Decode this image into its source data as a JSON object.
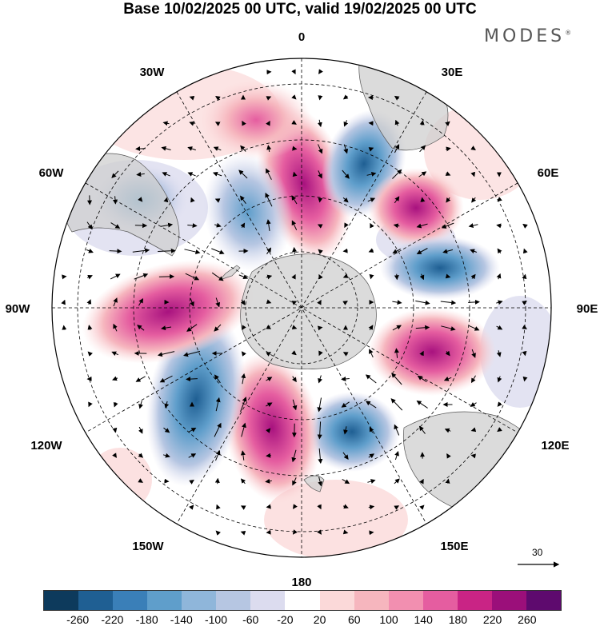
{
  "title": "Base 10/02/2025 00 UTC, valid 19/02/2025 00 UTC",
  "logo": "MODES",
  "logo_mark": "®",
  "longitude_labels": {
    "lon_0": "0",
    "lon_30e": "30E",
    "lon_60e": "60E",
    "lon_90e": "90E",
    "lon_120e": "120E",
    "lon_150e": "150E",
    "lon_180": "180",
    "lon_150w": "150W",
    "lon_120w": "120W",
    "lon_90w": "90W",
    "lon_60w": "60W",
    "lon_30w": "30W"
  },
  "reference_vector": {
    "label": "30"
  },
  "colorbar": {
    "colors": [
      "#0d3a5c",
      "#1f5f93",
      "#3a7fb8",
      "#5f9ecb",
      "#8fb6da",
      "#b6c6e2",
      "#dcdcef",
      "#ffffff",
      "#fbd9d9",
      "#f6b6be",
      "#f28fb0",
      "#e55da0",
      "#c92485",
      "#9b0f7a",
      "#5e0a6e"
    ],
    "ticks": [
      "-260",
      "-220",
      "-180",
      "-140",
      "-100",
      "-60",
      "-20",
      "20",
      "60",
      "100",
      "140",
      "180",
      "220",
      "260"
    ]
  }
}
